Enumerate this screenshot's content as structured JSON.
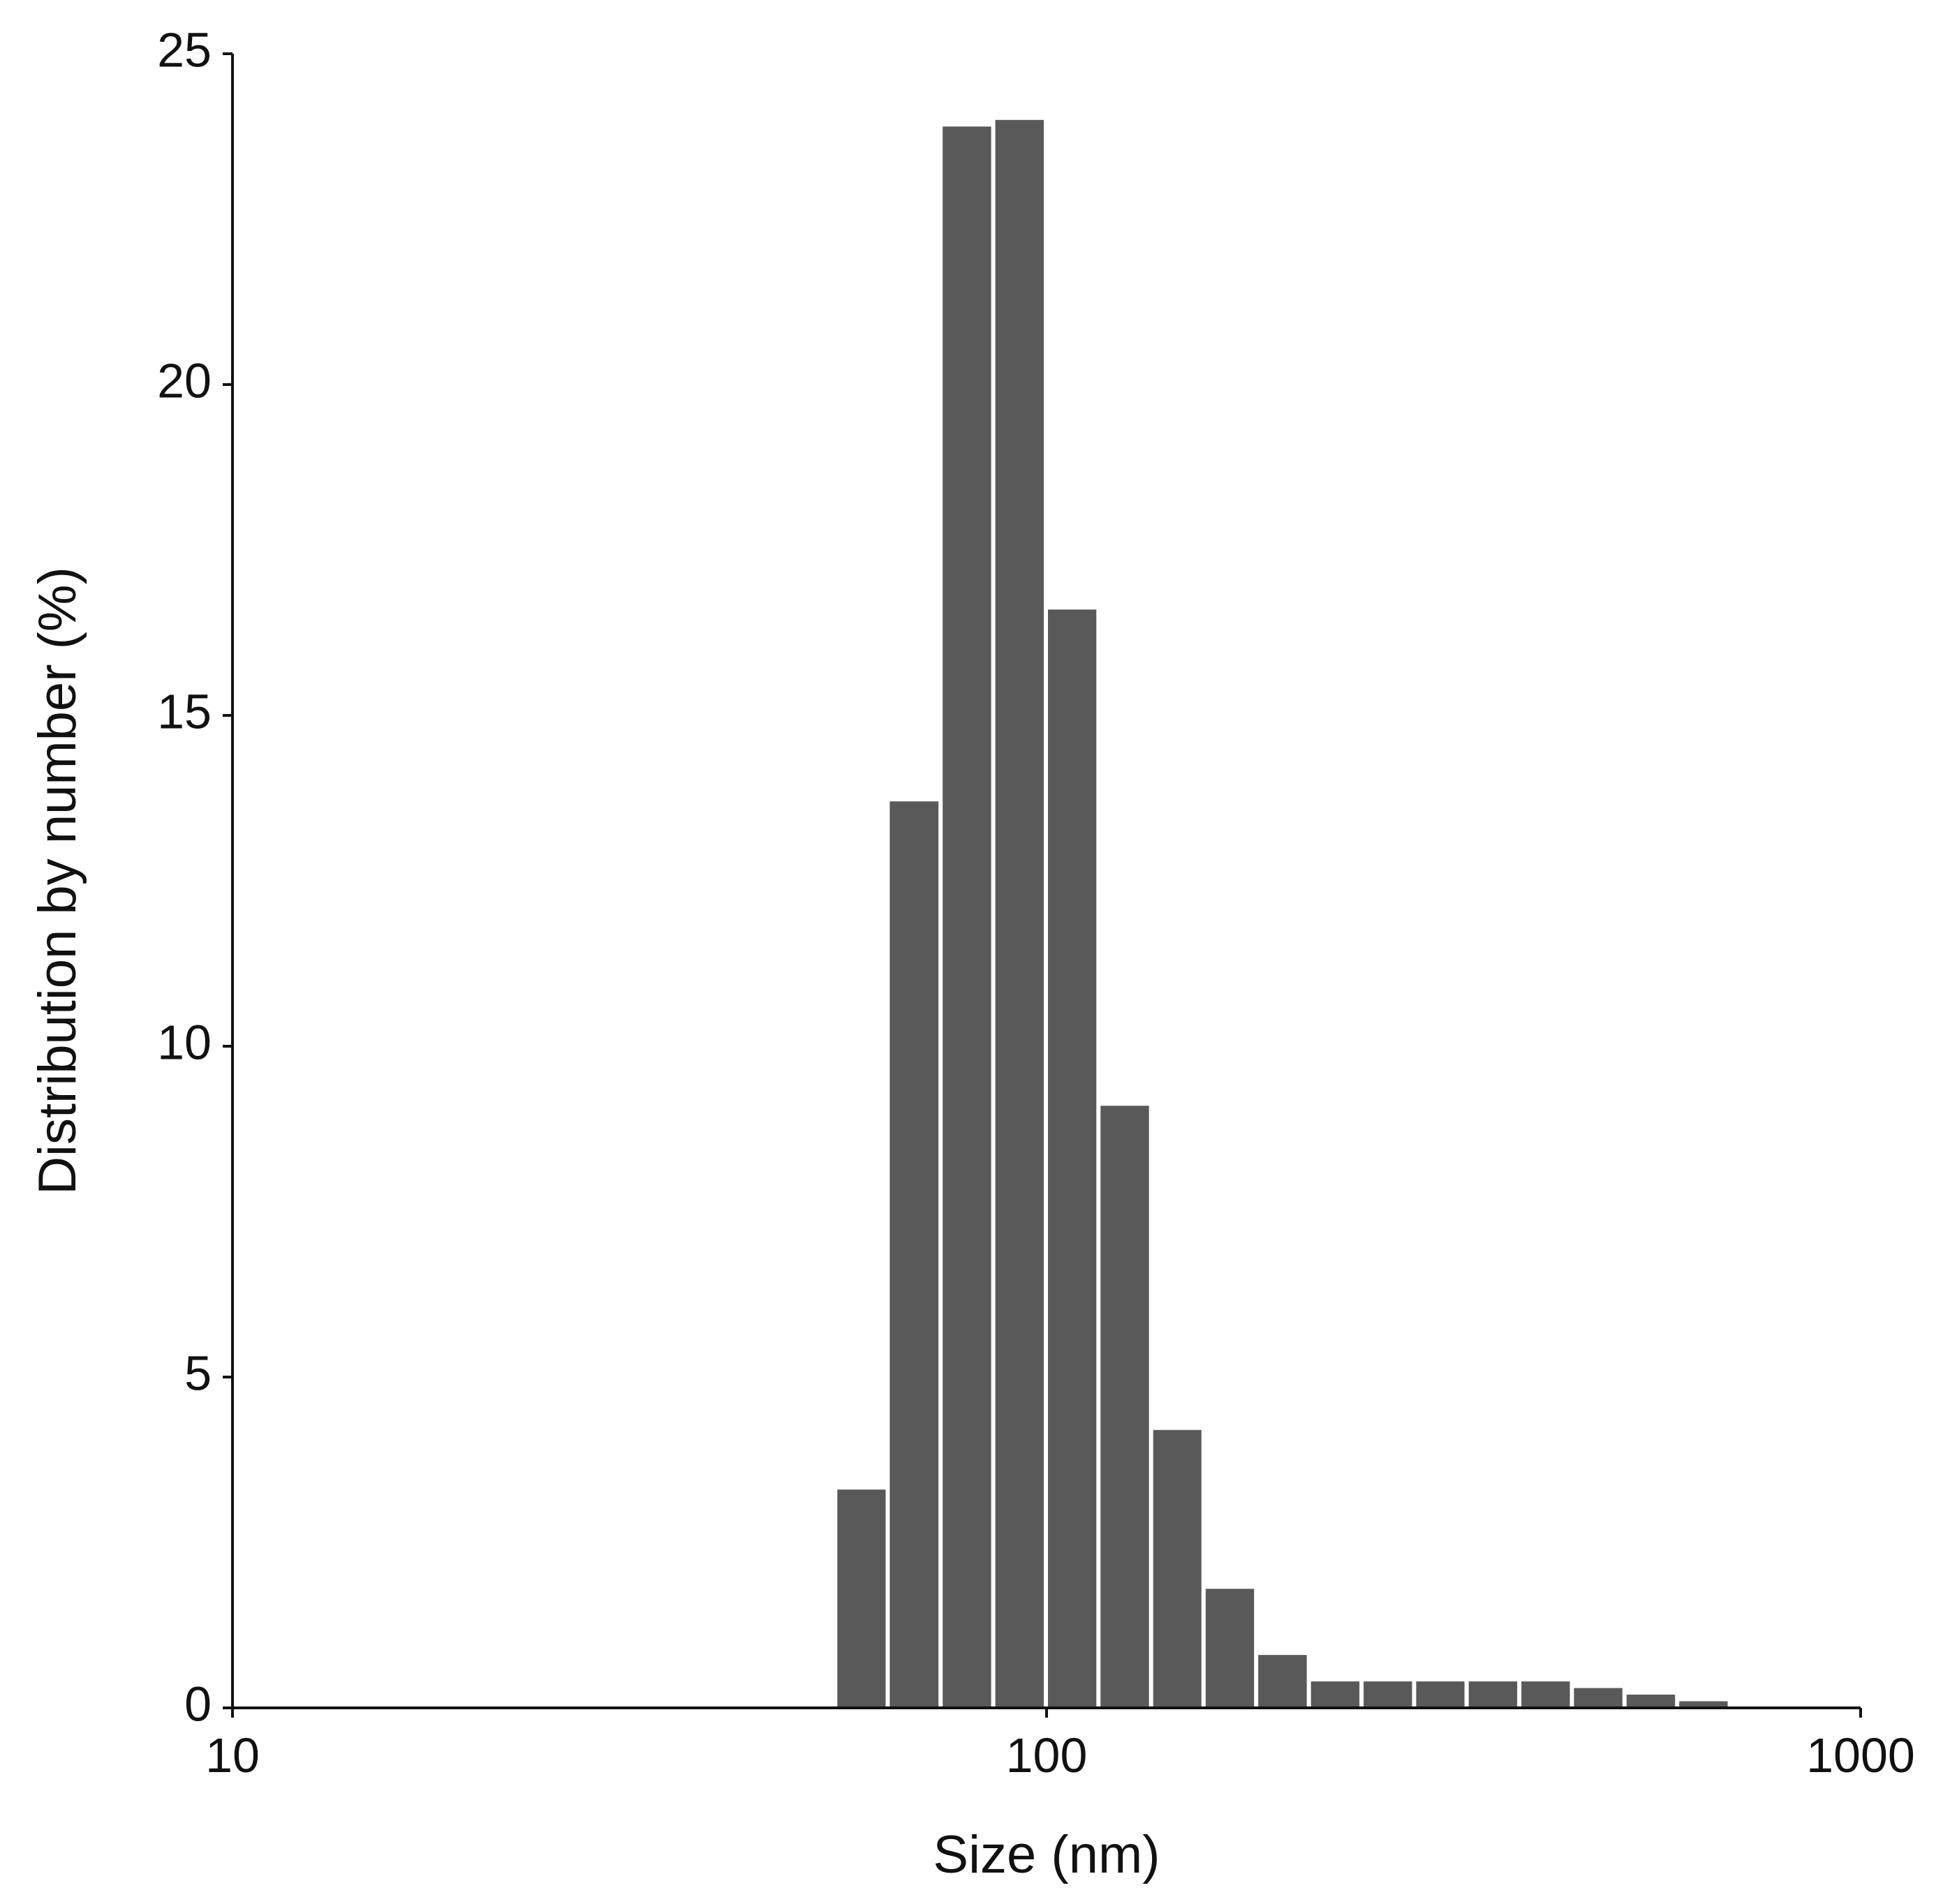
{
  "chart_data": {
    "type": "bar",
    "title": "",
    "xlabel": "Size (nm)",
    "ylabel": "Distribution by number (%)",
    "x_scale": "log",
    "xlim": [
      10,
      1000
    ],
    "ylim": [
      0,
      25
    ],
    "x_ticks": [
      10,
      100,
      1000
    ],
    "x_tick_labels": [
      "10",
      "100",
      "1000"
    ],
    "y_ticks": [
      0,
      5,
      10,
      15,
      20,
      25
    ],
    "y_tick_labels": [
      "0",
      "5",
      "10",
      "15",
      "20",
      "25"
    ],
    "grid": false,
    "bar_color": "#595959",
    "bins": [
      {
        "x_min": 55.0,
        "x_max": 63.8,
        "value": 3.3
      },
      {
        "x_min": 63.8,
        "x_max": 74.1,
        "value": 13.7
      },
      {
        "x_min": 74.1,
        "x_max": 86.0,
        "value": 23.9
      },
      {
        "x_min": 86.0,
        "x_max": 99.8,
        "value": 24.0
      },
      {
        "x_min": 99.8,
        "x_max": 115.8,
        "value": 16.6
      },
      {
        "x_min": 115.8,
        "x_max": 134.4,
        "value": 9.1
      },
      {
        "x_min": 134.4,
        "x_max": 155.9,
        "value": 4.2
      },
      {
        "x_min": 155.9,
        "x_max": 180.9,
        "value": 1.8
      },
      {
        "x_min": 180.9,
        "x_max": 210.0,
        "value": 0.8
      },
      {
        "x_min": 210.0,
        "x_max": 243.7,
        "value": 0.4
      },
      {
        "x_min": 243.7,
        "x_max": 282.8,
        "value": 0.4
      },
      {
        "x_min": 282.8,
        "x_max": 328.1,
        "value": 0.4
      },
      {
        "x_min": 328.1,
        "x_max": 380.8,
        "value": 0.4
      },
      {
        "x_min": 380.8,
        "x_max": 441.9,
        "value": 0.4
      },
      {
        "x_min": 441.9,
        "x_max": 512.8,
        "value": 0.3
      },
      {
        "x_min": 512.8,
        "x_max": 595.1,
        "value": 0.2
      },
      {
        "x_min": 595.1,
        "x_max": 690.6,
        "value": 0.1
      }
    ]
  }
}
